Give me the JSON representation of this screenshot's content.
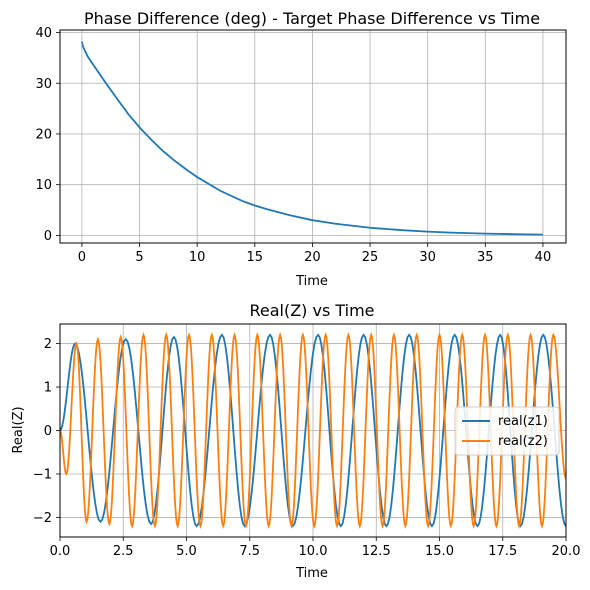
{
  "chart_data": [
    {
      "type": "line",
      "title": "Phase Difference (deg) - Target Phase Difference vs Time",
      "xlabel": "Time",
      "ylabel": "",
      "xlim": [
        -1.9,
        42
      ],
      "ylim": [
        -1.5,
        40.5
      ],
      "xticks": [
        0,
        5,
        10,
        15,
        20,
        25,
        30,
        35,
        40
      ],
      "yticks": [
        0,
        10,
        20,
        30,
        40
      ],
      "grid": true,
      "series": [
        {
          "color": "#1f77b4",
          "x": [
            0,
            0.1,
            0.5,
            1,
            2,
            3,
            4,
            5,
            6,
            7,
            8,
            9,
            10,
            12,
            14,
            15,
            16,
            18,
            20,
            22,
            25,
            28,
            30,
            32,
            35,
            38,
            40
          ],
          "y": [
            38.2,
            37.2,
            35.3,
            33.6,
            30.3,
            27.1,
            24.0,
            21.3,
            18.9,
            16.7,
            14.8,
            13.1,
            11.5,
            8.8,
            6.7,
            5.9,
            5.2,
            4.0,
            3.0,
            2.3,
            1.5,
            1.0,
            0.75,
            0.55,
            0.35,
            0.22,
            0.15
          ]
        }
      ]
    },
    {
      "type": "line",
      "title": "Real(Z) vs Time",
      "xlabel": "Time",
      "ylabel": "Real(Z)",
      "xlim": [
        0,
        20
      ],
      "ylim": [
        -2.45,
        2.45
      ],
      "xticks": [
        0.0,
        2.5,
        5.0,
        7.5,
        10.0,
        12.5,
        15.0,
        17.5,
        20.0
      ],
      "xtick_labels": [
        "0.0",
        "2.5",
        "5.0",
        "7.5",
        "10.0",
        "12.5",
        "15.0",
        "17.5",
        "20.0"
      ],
      "yticks": [
        -2,
        -1,
        0,
        1,
        2
      ],
      "ytick_labels": [
        "−2",
        "−1",
        "0",
        "1",
        "2"
      ],
      "grid": true,
      "legend": "right",
      "series": [
        {
          "name": "real(z1)",
          "color": "#1f77b4",
          "x_peaks": [
            0.6,
            2.6,
            4.5,
            6.4,
            8.3,
            10.2,
            12.0,
            13.8,
            15.6,
            17.4,
            19.1
          ],
          "x_troughs": [
            1.6,
            3.6,
            5.4,
            7.3,
            9.2,
            11.1,
            12.9,
            14.7,
            16.5,
            18.2,
            20.0
          ],
          "peak_values": [
            2.0,
            2.1,
            2.15,
            2.2,
            2.2,
            2.2,
            2.2,
            2.2,
            2.2,
            2.2,
            2.2
          ],
          "trough_values": [
            -2.1,
            -2.15,
            -2.2,
            -2.2,
            -2.2,
            -2.2,
            -2.2,
            -2.2,
            -2.2,
            -2.2,
            -2.2
          ]
        },
        {
          "name": "real(z2)",
          "color": "#ff7f0e",
          "x_peaks": [
            0.65,
            1.5,
            2.4,
            3.3,
            4.2,
            5.1,
            6.0,
            6.9,
            7.8,
            8.7,
            9.6,
            10.5,
            11.4,
            12.3,
            13.2,
            14.1,
            15.0,
            15.9,
            16.8,
            17.7,
            18.6,
            19.5
          ],
          "x_troughs": [
            0.25,
            1.05,
            1.95,
            2.85,
            3.75,
            4.65,
            5.55,
            6.45,
            7.35,
            8.25,
            9.15,
            10.05,
            10.95,
            11.85,
            12.75,
            13.65,
            14.55,
            15.45,
            16.35,
            17.25,
            18.15,
            19.05
          ],
          "peak_values": [
            2.0,
            2.1,
            2.15,
            2.2,
            2.2,
            2.2,
            2.2,
            2.2,
            2.2,
            2.2,
            2.2,
            2.2,
            2.2,
            2.2,
            2.2,
            2.2,
            2.2,
            2.2,
            2.2,
            2.2,
            2.2,
            2.2
          ],
          "trough_values": [
            -1.0,
            -2.1,
            -2.15,
            -2.2,
            -2.2,
            -2.2,
            -2.2,
            -2.2,
            -2.2,
            -2.2,
            -2.2,
            -2.2,
            -2.2,
            -2.2,
            -2.2,
            -2.2,
            -2.2,
            -2.2,
            -2.2,
            -2.2,
            -2.2,
            -2.2
          ]
        }
      ]
    }
  ]
}
